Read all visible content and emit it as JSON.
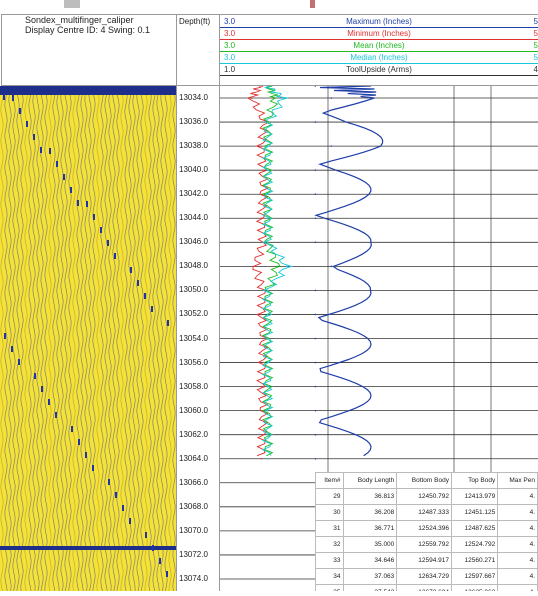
{
  "colors": {
    "maximum": "#1f3ea8",
    "minimum": "#e03030",
    "mean": "#22bb22",
    "median": "#18c8d8",
    "tool": "#333333",
    "image_bg": "#f2e23a",
    "image_dark": "#1d2f8a"
  },
  "header": {
    "tool_name": "Sondex_multifinger_caliper",
    "display_info": "Display Centre ID: 4   Swing: 0.1",
    "depth_title": "Depth(ft)"
  },
  "legend": [
    {
      "name": "Maximum (Inches)",
      "lo": "3.0",
      "hi": "5",
      "color": "#1f3ea8"
    },
    {
      "name": "Minimum (Inches)",
      "lo": "3.0",
      "hi": "5",
      "color": "#e03030"
    },
    {
      "name": "Mean (Inches)",
      "lo": "3.0",
      "hi": "5",
      "color": "#22bb22"
    },
    {
      "name": "Median (Inches)",
      "lo": "3.0",
      "hi": "5",
      "color": "#18c8d8"
    },
    {
      "name": "ToolUpside (Arms)",
      "lo": "1.0",
      "hi": "4",
      "color": "#333333"
    }
  ],
  "depth_axis": {
    "labels": [
      "13034.0",
      "13036.0",
      "13038.0",
      "13040.0",
      "13042.0",
      "13044.0",
      "13046.0",
      "13048.0",
      "13050.0",
      "13052.0",
      "13054.0",
      "13056.0",
      "13058.0",
      "13060.0",
      "13062.0",
      "13064.0",
      "13066.0",
      "13068.0",
      "13070.0",
      "13072.0",
      "13074.0"
    ],
    "top": 13033.0,
    "bottom": 13075.0
  },
  "chart_data": {
    "type": "line",
    "title": "",
    "ylabel": "Depth(ft)",
    "ylim": [
      13033.0,
      13075.0
    ],
    "xlim": [
      3.0,
      5.0
    ],
    "series": [
      {
        "name": "Maximum (Inches)",
        "depth": [
          13033,
          13034,
          13036,
          13038,
          13040,
          13042,
          13044,
          13046,
          13048,
          13050,
          13052,
          13054,
          13056,
          13058,
          13060,
          13062,
          13064
        ],
        "values": [
          3.6,
          3.7,
          3.6,
          3.7,
          3.6,
          3.6,
          3.6,
          3.6,
          3.7,
          3.6,
          3.6,
          3.6,
          3.6,
          3.6,
          3.6,
          3.6,
          3.6
        ]
      },
      {
        "name": "Minimum (Inches)",
        "depth": [
          13033,
          13034,
          13036,
          13038,
          13040,
          13042,
          13044,
          13046,
          13048,
          13050,
          13052,
          13054,
          13056,
          13058,
          13060,
          13062,
          13064
        ],
        "values": [
          3.25,
          3.2,
          3.28,
          3.26,
          3.27,
          3.27,
          3.26,
          3.27,
          3.22,
          3.27,
          3.26,
          3.27,
          3.27,
          3.26,
          3.27,
          3.27,
          3.26
        ]
      },
      {
        "name": "Mean (Inches)",
        "depth": [
          13033,
          13034,
          13036,
          13038,
          13040,
          13042,
          13044,
          13046,
          13048,
          13050,
          13052,
          13054,
          13056,
          13058,
          13060,
          13062,
          13064
        ],
        "values": [
          3.3,
          3.35,
          3.3,
          3.3,
          3.3,
          3.3,
          3.3,
          3.3,
          3.36,
          3.3,
          3.3,
          3.3,
          3.3,
          3.3,
          3.3,
          3.3,
          3.3
        ]
      },
      {
        "name": "Median (Inches)",
        "depth": [
          13033,
          13034,
          13036,
          13038,
          13040,
          13042,
          13044,
          13046,
          13048,
          13050,
          13052,
          13054,
          13056,
          13058,
          13060,
          13062,
          13064
        ],
        "values": [
          3.3,
          3.4,
          3.3,
          3.3,
          3.3,
          3.3,
          3.3,
          3.3,
          3.42,
          3.3,
          3.3,
          3.3,
          3.3,
          3.3,
          3.3,
          3.3,
          3.3
        ]
      },
      {
        "name": "ToolUpside (Arms)",
        "depth": [
          13033,
          13034,
          13036,
          13038,
          13040,
          13042,
          13044,
          13046,
          13048,
          13050,
          13052,
          13054,
          13056,
          13058,
          13060,
          13062,
          13064
        ],
        "values": [
          2.35,
          2.4,
          2.3,
          2.38,
          2.32,
          2.36,
          2.34,
          2.33,
          2.36,
          2.35,
          2.34,
          2.36,
          2.33,
          2.35,
          2.34,
          2.36,
          2.35
        ]
      }
    ]
  },
  "table": {
    "headers": [
      "Item#",
      "Body Length",
      "Bottom Body",
      "Top Body",
      "Max Pen"
    ],
    "rows": [
      [
        "29",
        "36.813",
        "12450.792",
        "12413.979",
        "4."
      ],
      [
        "30",
        "36.208",
        "12487.333",
        "12451.125",
        "4."
      ],
      [
        "31",
        "36.771",
        "12524.396",
        "12487.625",
        "4."
      ],
      [
        "32",
        "35.000",
        "12559.792",
        "12524.792",
        "4."
      ],
      [
        "33",
        "34.646",
        "12594.917",
        "12560.271",
        "4."
      ],
      [
        "34",
        "37.063",
        "12634.729",
        "12597.667",
        "4."
      ],
      [
        "35",
        "37.542",
        "12672.604",
        "12635.062",
        "4."
      ]
    ]
  }
}
